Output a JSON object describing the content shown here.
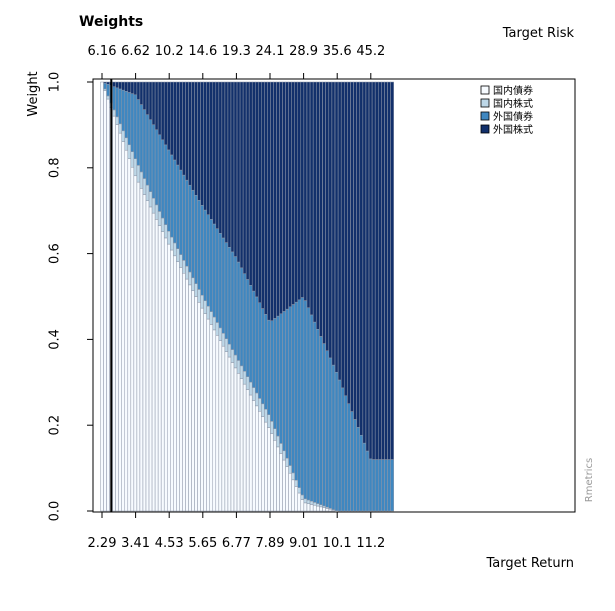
{
  "chart_data": {
    "type": "area",
    "title": "Weights",
    "xlabel": "Target Return",
    "ylabel": "Weight",
    "x2label": "Target Risk",
    "bottom_ticks": [
      "2.29",
      "3.41",
      "4.53",
      "5.65",
      "6.77",
      "7.89",
      "9.01",
      "10.1",
      "11.2"
    ],
    "top_ticks": [
      "6.16",
      "6.62",
      "10.2",
      "14.6",
      "19.3",
      "24.1",
      "28.9",
      "35.6",
      "45.2"
    ],
    "y_ticks": [
      "0.0",
      "0.2",
      "0.4",
      "0.6",
      "0.8",
      "1.0"
    ],
    "ylim": [
      0,
      1
    ],
    "x": [
      2.29,
      3.41,
      4.53,
      5.65,
      6.77,
      7.89,
      9.01,
      10.1,
      11.2
    ],
    "min_variance_return": 2.6,
    "series": [
      {
        "name": "国内債券",
        "color": "#f7fbff",
        "values": [
          1.0,
          0.78,
          0.62,
          0.47,
          0.33,
          0.19,
          0.02,
          0.0,
          0.0
        ]
      },
      {
        "name": "国内株式",
        "color": "#bdd7e7",
        "values": [
          0.0,
          0.04,
          0.03,
          0.03,
          0.03,
          0.03,
          0.01,
          0.0,
          0.0
        ]
      },
      {
        "name": "外国債券",
        "color": "#3f87c0",
        "values": [
          0.0,
          0.15,
          0.19,
          0.21,
          0.23,
          0.22,
          0.47,
          0.32,
          0.12
        ]
      },
      {
        "name": "外国株式",
        "color": "#12306b",
        "values": [
          0.0,
          0.03,
          0.16,
          0.29,
          0.41,
          0.56,
          0.5,
          0.68,
          0.88
        ]
      }
    ],
    "legend_position": "top-right",
    "watermark": "Rmetrics",
    "grid": false
  }
}
